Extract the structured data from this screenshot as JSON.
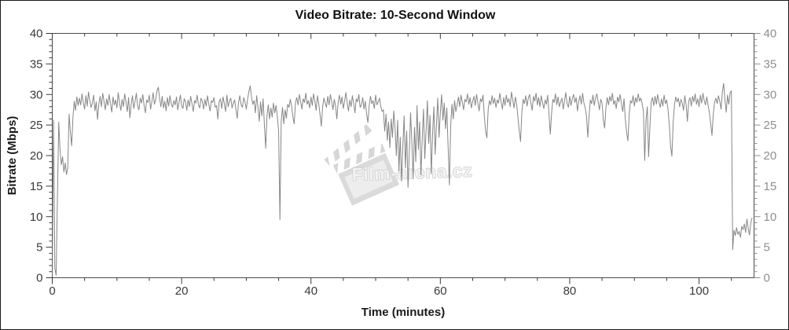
{
  "chart_data": {
    "type": "line",
    "title": "Video Bitrate: 10-Second Window",
    "xlabel": "Time (minutes)",
    "ylabel": "Bitrate (Mbps)",
    "xlim": [
      0,
      108.5
    ],
    "ylim": [
      0,
      40
    ],
    "x_major_ticks": [
      0,
      20,
      40,
      60,
      80,
      100
    ],
    "x_minor_step": 5,
    "y_major_step": 5,
    "y_minor_step": 1,
    "grid": false,
    "legend": "none",
    "left_tick_labels": [
      "0",
      "5",
      "10",
      "15",
      "20",
      "25",
      "30",
      "35",
      "40"
    ],
    "right_tick_labels": [
      "0",
      "5",
      "10",
      "15",
      "20",
      "25",
      "30",
      "35",
      "40"
    ],
    "bottom_tick_labels": [
      "0",
      "20",
      "40",
      "60",
      "80",
      "100"
    ],
    "colors": {
      "line": "#868686",
      "frame": "#4a4a4a",
      "left_labels": "#3a3a3a",
      "right_labels": "#8e8e8e",
      "bottom_labels": "#3a3a3a",
      "title": "#111111"
    },
    "series": [
      {
        "name": "video-bitrate",
        "unit": "Mbps",
        "t_start": 0,
        "t_step": 0.2,
        "values": [
          0.2,
          25.8,
          1.5,
          0.4,
          13.0,
          25.5,
          21.0,
          18.5,
          19.8,
          17.3,
          18.8,
          16.9,
          18.0,
          26.8,
          23.9,
          21.6,
          26.3,
          28.9,
          27.4,
          29.6,
          28.2,
          29.4,
          28.3,
          30.1,
          28.7,
          27.6,
          29.8,
          28.1,
          30.4,
          29.0,
          27.9,
          28.6,
          29.9,
          27.3,
          28.8,
          25.9,
          28.4,
          29.7,
          28.0,
          30.2,
          28.9,
          27.5,
          29.3,
          28.2,
          30.0,
          28.5,
          27.1,
          29.6,
          28.3,
          29.1,
          27.8,
          30.3,
          28.6,
          27.4,
          29.2,
          28.0,
          30.1,
          28.8,
          27.2,
          29.5,
          26.2,
          28.4,
          29.8,
          27.7,
          28.9,
          30.2,
          28.1,
          27.5,
          29.4,
          28.6,
          30.0,
          28.2,
          27.0,
          29.1,
          28.7,
          29.9,
          27.6,
          28.8,
          30.3,
          28.4,
          29.2,
          30.6,
          31.2,
          29.3,
          28.0,
          29.7,
          27.8,
          28.9,
          27.3,
          29.5,
          28.1,
          29.8,
          28.5,
          27.9,
          29.0,
          28.3,
          29.6,
          27.5,
          28.7,
          29.9,
          28.2,
          27.7,
          29.3,
          28.8,
          27.4,
          29.1,
          28.0,
          29.7,
          28.5,
          27.2,
          29.0,
          28.6,
          29.9,
          28.3,
          27.8,
          29.4,
          28.9,
          27.6,
          29.2,
          28.1,
          29.8,
          28.4,
          27.3,
          29.0,
          28.7,
          29.5,
          27.9,
          28.2,
          26.0,
          28.8,
          29.3,
          27.7,
          29.6,
          28.5,
          27.2,
          29.9,
          28.0,
          28.9,
          29.4,
          27.8,
          28.6,
          29.1,
          27.5,
          26.1,
          28.7,
          29.8,
          28.3,
          27.9,
          29.5,
          28.8,
          27.6,
          29.2,
          30.5,
          31.4,
          29.6,
          28.4,
          29.0,
          27.0,
          29.8,
          28.0,
          25.6,
          28.8,
          26.5,
          29.3,
          25.0,
          21.2,
          26.5,
          28.3,
          26.0,
          27.8,
          26.3,
          28.6,
          27.0,
          28.2,
          26.4,
          24.0,
          9.5,
          25.6,
          27.9,
          25.2,
          27.5,
          26.1,
          28.4,
          27.9,
          29.2,
          28.1,
          26.4,
          25.2,
          28.6,
          29.5,
          28.3,
          30.0,
          28.8,
          27.6,
          29.3,
          28.7,
          30.2,
          28.4,
          29.0,
          27.8,
          29.6,
          28.2,
          30.1,
          28.9,
          27.4,
          29.8,
          28.5,
          26.7,
          24.8,
          28.0,
          29.4,
          28.6,
          27.9,
          29.7,
          28.3,
          30.0,
          28.8,
          27.5,
          29.2,
          28.1,
          26.0,
          28.7,
          29.9,
          28.4,
          29.6,
          27.7,
          28.9,
          30.3,
          28.6,
          27.3,
          29.1,
          28.0,
          29.8,
          28.5,
          27.0,
          29.3,
          28.8,
          30.0,
          27.9,
          28.3,
          29.5,
          27.6,
          28.9,
          26.8,
          25.4,
          28.2,
          29.7,
          28.5,
          29.0,
          27.7,
          29.9,
          28.3,
          28.8,
          29.4,
          28.0,
          27.2,
          27.5,
          24.0,
          26.8,
          22.5,
          25.5,
          21.3,
          26.0,
          23.0,
          27.3,
          24.5,
          20.0,
          25.8,
          17.5,
          23.0,
          15.8,
          21.5,
          26.5,
          18.0,
          24.0,
          14.8,
          20.5,
          27.0,
          22.0,
          16.2,
          24.6,
          19.0,
          28.2,
          21.0,
          25.5,
          16.8,
          22.8,
          27.6,
          19.5,
          24.2,
          29.0,
          22.0,
          26.6,
          17.0,
          23.5,
          28.0,
          20.2,
          25.0,
          29.4,
          23.0,
          27.0,
          30.0,
          25.8,
          28.6,
          24.4,
          27.8,
          21.5,
          15.2,
          24.8,
          28.4,
          26.0,
          29.0,
          27.2,
          28.3,
          29.6,
          28.0,
          29.9,
          28.7,
          27.5,
          29.2,
          28.8,
          30.1,
          28.4,
          29.5,
          27.8,
          28.9,
          29.7,
          28.2,
          30.0,
          28.6,
          27.3,
          29.3,
          28.8,
          29.9,
          26.5,
          24.0,
          22.9,
          27.6,
          29.0,
          28.3,
          29.8,
          28.5,
          29.4,
          27.9,
          29.1,
          28.6,
          30.2,
          28.8,
          27.6,
          29.5,
          28.2,
          29.9,
          28.7,
          29.3,
          28.0,
          30.4,
          29.1,
          27.8,
          29.6,
          28.4,
          26.2,
          24.1,
          22.3,
          27.0,
          29.2,
          28.5,
          29.8,
          28.1,
          29.4,
          30.0,
          28.6,
          27.4,
          29.7,
          28.9,
          30.2,
          28.3,
          29.5,
          28.0,
          29.8,
          28.6,
          27.7,
          29.1,
          28.4,
          29.9,
          26.8,
          23.5,
          26.9,
          29.2,
          28.7,
          30.1,
          28.3,
          29.6,
          28.0,
          28.8,
          29.4,
          27.6,
          29.0,
          30.3,
          28.5,
          27.9,
          29.7,
          28.2,
          29.3,
          30.0,
          28.7,
          29.5,
          27.3,
          28.9,
          29.8,
          28.4,
          30.2,
          28.6,
          27.8,
          26.4,
          23.0,
          26.6,
          29.1,
          28.5,
          29.9,
          28.2,
          29.4,
          30.1,
          28.8,
          27.5,
          29.2,
          28.6,
          25.9,
          24.5,
          27.8,
          29.5,
          28.3,
          29.7,
          28.9,
          30.2,
          28.4,
          29.0,
          27.7,
          29.6,
          28.8,
          30.0,
          28.5,
          27.2,
          29.3,
          26.0,
          23.8,
          22.4,
          26.7,
          29.0,
          28.6,
          29.8,
          28.1,
          29.5,
          28.7,
          30.1,
          28.9,
          29.4,
          28.5,
          27.3,
          19.2,
          25.8,
          28.0,
          19.8,
          24.6,
          28.8,
          29.5,
          28.2,
          29.7,
          28.4,
          30.0,
          28.7,
          27.9,
          29.3,
          28.1,
          29.9,
          28.5,
          29.1,
          27.6,
          25.0,
          21.5,
          19.9,
          25.4,
          28.3,
          29.6,
          28.8,
          29.4,
          28.0,
          29.2,
          28.6,
          27.4,
          29.8,
          28.3,
          25.6,
          28.9,
          29.5,
          28.1,
          29.7,
          28.8,
          30.1,
          28.4,
          29.3,
          28.0,
          29.9,
          28.6,
          30.2,
          29.0,
          28.3,
          29.6,
          28.2,
          27.0,
          25.2,
          23.3,
          26.8,
          28.7,
          29.4,
          28.5,
          29.8,
          28.9,
          27.6,
          30.4,
          31.8,
          29.2,
          27.1,
          29.9,
          28.4,
          30.3,
          30.6,
          4.6,
          7.8,
          6.9,
          8.2,
          7.1,
          7.6,
          6.6,
          8.4,
          7.9,
          8.8,
          7.4,
          9.6,
          8.1,
          7.0,
          9.0,
          9.8
        ]
      }
    ]
  },
  "watermark": {
    "text": "Film-arena.cz"
  }
}
